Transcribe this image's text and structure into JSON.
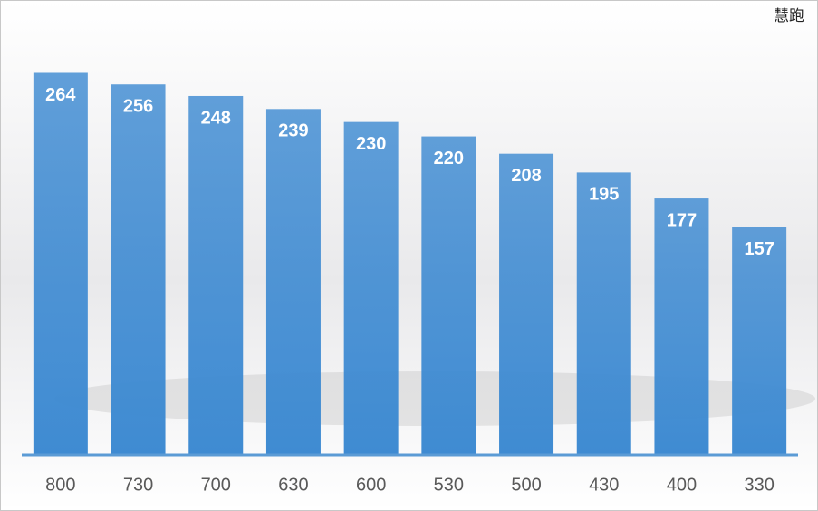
{
  "chart_data": {
    "type": "bar",
    "annotation": "慧跑",
    "categories": [
      "800",
      "730",
      "700",
      "630",
      "600",
      "530",
      "500",
      "430",
      "400",
      "330"
    ],
    "values": [
      264,
      256,
      248,
      239,
      230,
      220,
      208,
      195,
      177,
      157
    ],
    "color": "#3f8bd2",
    "ylim": [
      0,
      280
    ]
  }
}
